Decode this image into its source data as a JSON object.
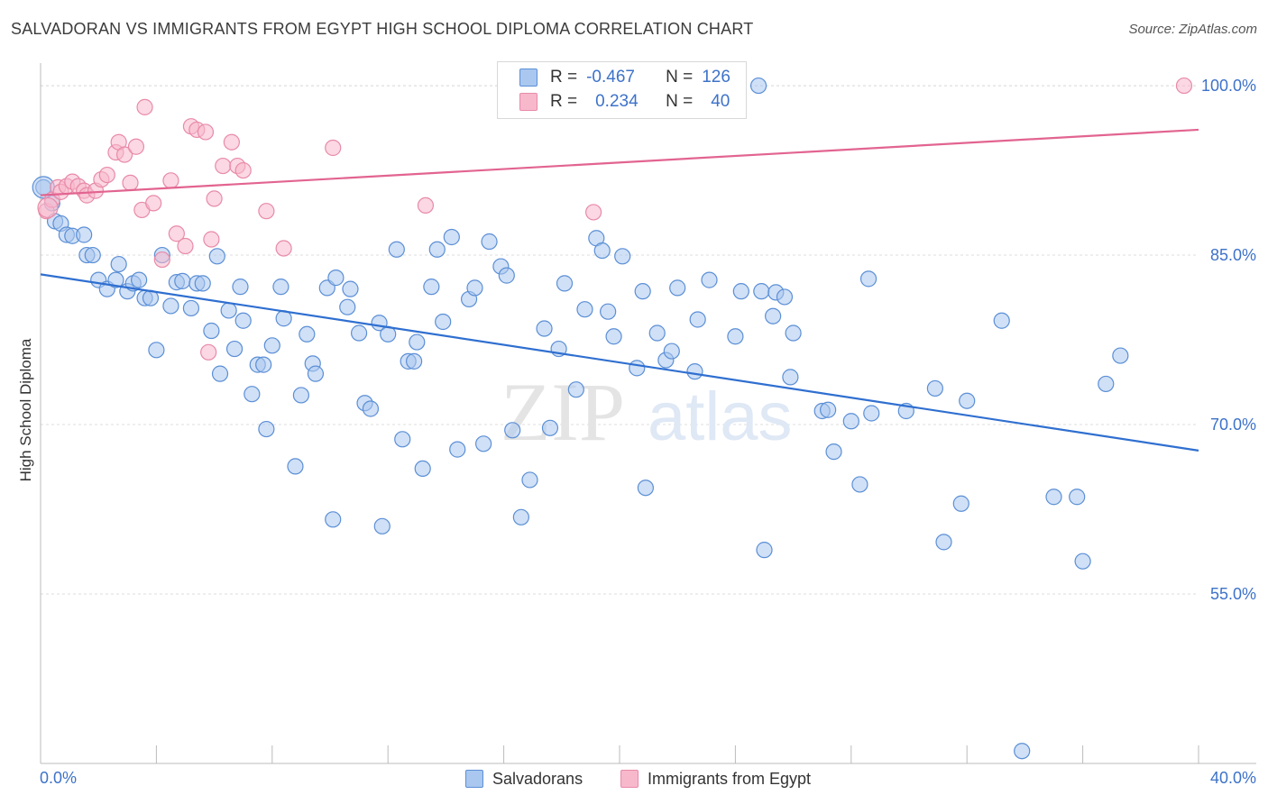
{
  "title": "SALVADORAN VS IMMIGRANTS FROM EGYPT HIGH SCHOOL DIPLOMA CORRELATION CHART",
  "source": "Source: ZipAtlas.com",
  "watermark": {
    "zip": "ZIP",
    "atlas": "atlas"
  },
  "colors": {
    "blue_fill": "#a9c7ef",
    "blue_stroke": "#5b8fd6",
    "blue_line": "#2f6fd0",
    "pink_fill": "#f7b8cc",
    "pink_stroke": "#e88aa8",
    "pink_line": "#e26490",
    "axis_text": "#3d72c9",
    "grid": "#dddddd"
  },
  "legend_top": {
    "rows": [
      {
        "r_label": "R =",
        "r_value": "-0.467",
        "n_label": "N =",
        "n_value": "126"
      },
      {
        "r_label": "R =",
        "r_value": "0.234",
        "n_label": "N =",
        "n_value": "40"
      }
    ]
  },
  "legend_bottom": {
    "series1": "Salvadorans",
    "series2": "Immigrants from Egypt"
  },
  "chart_data": {
    "type": "scatter",
    "title": "SALVADORAN VS IMMIGRANTS FROM EGYPT HIGH SCHOOL DIPLOMA CORRELATION CHART",
    "xlabel": "",
    "ylabel": "High School Diploma",
    "xlim": [
      0,
      40
    ],
    "ylim": [
      40,
      102
    ],
    "x_tick_labels": [
      "0.0%",
      "40.0%"
    ],
    "y_ticks": [
      55,
      70,
      85,
      100
    ],
    "y_tick_labels": [
      "55.0%",
      "70.0%",
      "85.0%",
      "100.0%"
    ],
    "grid": true,
    "legend_placement": "bottom",
    "series": [
      {
        "name": "Salvadorans",
        "color": "#a9c7ef",
        "trend": {
          "x": [
            0,
            40
          ],
          "y": [
            83.3,
            67.7
          ]
        },
        "points": [
          [
            0.1,
            91.0
          ],
          [
            0.4,
            89.6
          ],
          [
            0.5,
            88.0
          ],
          [
            0.7,
            87.8
          ],
          [
            0.9,
            86.8
          ],
          [
            1.1,
            86.7
          ],
          [
            1.5,
            86.8
          ],
          [
            1.6,
            85.0
          ],
          [
            1.8,
            85.0
          ],
          [
            2.0,
            82.8
          ],
          [
            2.3,
            82.0
          ],
          [
            2.6,
            82.8
          ],
          [
            2.7,
            84.2
          ],
          [
            3.0,
            81.8
          ],
          [
            3.2,
            82.5
          ],
          [
            3.4,
            82.8
          ],
          [
            3.6,
            81.2
          ],
          [
            3.8,
            81.2
          ],
          [
            4.0,
            76.6
          ],
          [
            4.2,
            85.0
          ],
          [
            4.5,
            80.5
          ],
          [
            4.7,
            82.6
          ],
          [
            4.9,
            82.7
          ],
          [
            5.2,
            80.3
          ],
          [
            5.4,
            82.5
          ],
          [
            5.6,
            82.5
          ],
          [
            5.9,
            78.3
          ],
          [
            6.1,
            84.9
          ],
          [
            6.2,
            74.5
          ],
          [
            6.5,
            80.1
          ],
          [
            6.7,
            76.7
          ],
          [
            6.9,
            82.2
          ],
          [
            7.0,
            79.2
          ],
          [
            7.3,
            72.7
          ],
          [
            7.5,
            75.3
          ],
          [
            7.7,
            75.3
          ],
          [
            7.8,
            69.6
          ],
          [
            8.0,
            77.0
          ],
          [
            8.3,
            82.2
          ],
          [
            8.4,
            79.4
          ],
          [
            8.8,
            66.3
          ],
          [
            9.0,
            72.6
          ],
          [
            9.2,
            78.0
          ],
          [
            9.4,
            75.4
          ],
          [
            9.5,
            74.5
          ],
          [
            9.9,
            82.1
          ],
          [
            10.1,
            61.6
          ],
          [
            10.2,
            83.0
          ],
          [
            10.6,
            80.4
          ],
          [
            10.7,
            82.0
          ],
          [
            11.0,
            78.1
          ],
          [
            11.2,
            71.9
          ],
          [
            11.4,
            71.4
          ],
          [
            11.7,
            79.0
          ],
          [
            11.8,
            61.0
          ],
          [
            12.0,
            78.0
          ],
          [
            12.3,
            85.5
          ],
          [
            12.5,
            68.7
          ],
          [
            12.7,
            75.6
          ],
          [
            12.9,
            75.6
          ],
          [
            13.0,
            77.3
          ],
          [
            13.2,
            66.1
          ],
          [
            13.5,
            82.2
          ],
          [
            13.7,
            85.5
          ],
          [
            13.9,
            79.1
          ],
          [
            14.2,
            86.6
          ],
          [
            14.4,
            67.8
          ],
          [
            14.8,
            81.1
          ],
          [
            15.0,
            82.1
          ],
          [
            15.3,
            68.3
          ],
          [
            15.5,
            86.2
          ],
          [
            15.9,
            84.0
          ],
          [
            16.1,
            83.2
          ],
          [
            16.3,
            69.5
          ],
          [
            16.6,
            61.8
          ],
          [
            16.9,
            65.1
          ],
          [
            17.4,
            78.5
          ],
          [
            17.6,
            69.7
          ],
          [
            17.9,
            76.7
          ],
          [
            18.1,
            82.5
          ],
          [
            18.5,
            73.1
          ],
          [
            18.8,
            80.2
          ],
          [
            19.2,
            86.5
          ],
          [
            19.4,
            85.4
          ],
          [
            19.6,
            80.0
          ],
          [
            19.8,
            77.8
          ],
          [
            20.1,
            84.9
          ],
          [
            20.6,
            75.0
          ],
          [
            20.8,
            81.8
          ],
          [
            20.9,
            64.4
          ],
          [
            21.3,
            78.1
          ],
          [
            21.6,
            75.7
          ],
          [
            21.8,
            76.5
          ],
          [
            22.0,
            82.1
          ],
          [
            22.6,
            74.7
          ],
          [
            22.7,
            79.3
          ],
          [
            23.1,
            82.8
          ],
          [
            24.0,
            77.8
          ],
          [
            24.2,
            81.8
          ],
          [
            24.9,
            81.8
          ],
          [
            25.3,
            79.6
          ],
          [
            25.4,
            81.7
          ],
          [
            25.7,
            81.3
          ],
          [
            26.0,
            78.1
          ],
          [
            24.8,
            100.0
          ],
          [
            25.0,
            58.9
          ],
          [
            25.9,
            74.2
          ],
          [
            27.0,
            71.2
          ],
          [
            27.2,
            71.3
          ],
          [
            27.4,
            67.6
          ],
          [
            28.0,
            70.3
          ],
          [
            28.3,
            64.7
          ],
          [
            28.6,
            82.9
          ],
          [
            28.7,
            71.0
          ],
          [
            29.9,
            71.2
          ],
          [
            30.9,
            73.2
          ],
          [
            31.2,
            59.6
          ],
          [
            31.8,
            63.0
          ],
          [
            32.0,
            72.1
          ],
          [
            33.2,
            79.2
          ],
          [
            33.9,
            41.1
          ],
          [
            35.0,
            63.6
          ],
          [
            36.0,
            57.9
          ],
          [
            36.8,
            73.6
          ],
          [
            37.3,
            76.1
          ],
          [
            35.8,
            63.6
          ]
        ]
      },
      {
        "name": "Immigrants from Egypt",
        "color": "#f7b8cc",
        "trend": {
          "x": [
            0,
            40
          ],
          "y": [
            90.3,
            96.1
          ]
        },
        "points": [
          [
            0.2,
            88.9
          ],
          [
            0.4,
            89.9
          ],
          [
            0.6,
            91.0
          ],
          [
            0.7,
            90.6
          ],
          [
            0.9,
            91.1
          ],
          [
            1.1,
            91.5
          ],
          [
            1.3,
            91.1
          ],
          [
            1.5,
            90.7
          ],
          [
            1.6,
            90.3
          ],
          [
            1.9,
            90.7
          ],
          [
            2.1,
            91.7
          ],
          [
            2.3,
            92.1
          ],
          [
            2.6,
            94.1
          ],
          [
            2.7,
            95.0
          ],
          [
            2.9,
            93.9
          ],
          [
            3.1,
            91.4
          ],
          [
            3.3,
            94.6
          ],
          [
            3.5,
            89.0
          ],
          [
            3.6,
            98.1
          ],
          [
            3.9,
            89.6
          ],
          [
            4.2,
            84.6
          ],
          [
            4.5,
            91.6
          ],
          [
            4.7,
            86.9
          ],
          [
            5.0,
            85.8
          ],
          [
            5.2,
            96.4
          ],
          [
            5.4,
            96.1
          ],
          [
            5.7,
            95.9
          ],
          [
            5.8,
            76.4
          ],
          [
            5.9,
            86.4
          ],
          [
            6.0,
            90.0
          ],
          [
            6.3,
            92.9
          ],
          [
            6.6,
            95.0
          ],
          [
            6.8,
            92.9
          ],
          [
            7.0,
            92.5
          ],
          [
            7.8,
            88.9
          ],
          [
            8.4,
            85.6
          ],
          [
            10.1,
            94.5
          ],
          [
            13.3,
            89.4
          ],
          [
            19.1,
            88.8
          ],
          [
            39.5,
            100.0
          ]
        ]
      }
    ]
  }
}
